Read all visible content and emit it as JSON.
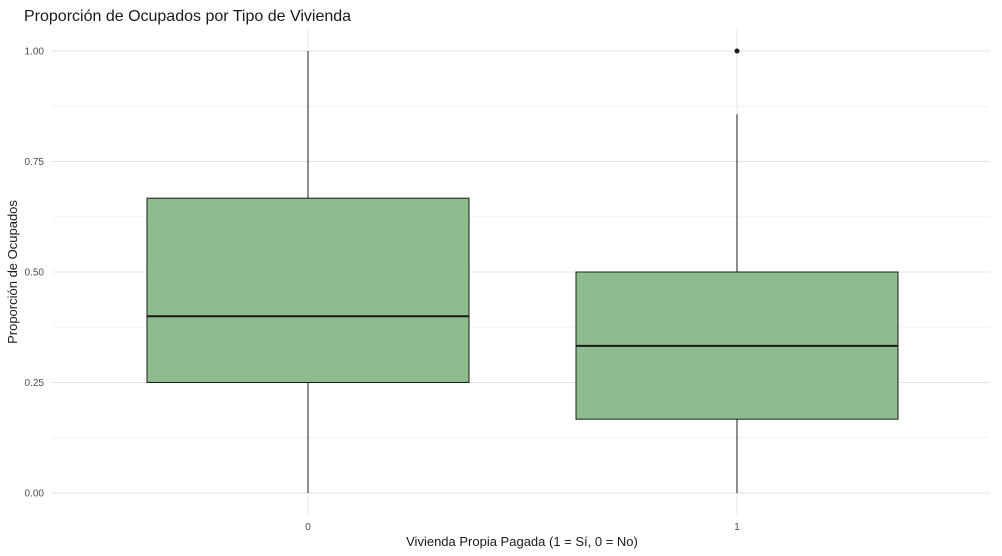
{
  "chart_data": {
    "type": "boxplot",
    "title": "Proporción de Ocupados por Tipo de Vivienda",
    "xlabel": "Vivienda Propia Pagada (1 = Sí, 0 = No)",
    "ylabel": "Proporción de Ocupados",
    "ylim": [
      0,
      1
    ],
    "y_ticks": [
      "0.00",
      "0.25",
      "0.50",
      "0.75",
      "1.00"
    ],
    "grid": true,
    "fill_color": "#8fbc8f",
    "categories": [
      "0",
      "1"
    ],
    "boxes": [
      {
        "category": "0",
        "min": 0.0,
        "q1": 0.25,
        "median": 0.4,
        "q3": 0.667,
        "max": 1.0,
        "outliers": []
      },
      {
        "category": "1",
        "min": 0.0,
        "q1": 0.167,
        "median": 0.333,
        "q3": 0.5,
        "max": 0.857,
        "outliers": [
          1.0
        ]
      }
    ]
  }
}
